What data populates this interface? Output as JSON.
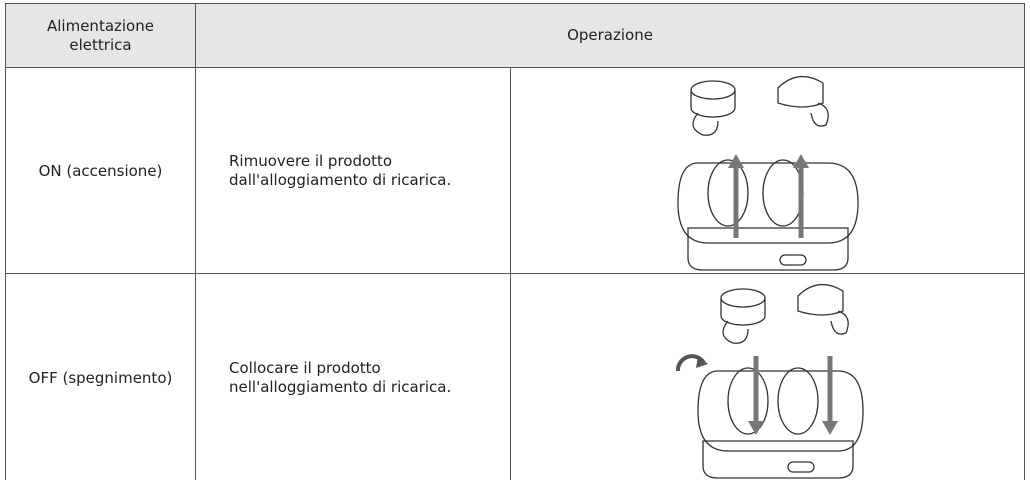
{
  "table": {
    "header": [
      "Alimentazione elettrica",
      "Operazione"
    ],
    "rows": [
      [
        "ON (accensione)",
        "Rimuovere il prodotto dall'alloggiamento di ricarica."
      ],
      [
        "OFF (spegnimento)",
        "Collocare il prodotto nell'alloggiamento di ricarica."
      ]
    ]
  }
}
